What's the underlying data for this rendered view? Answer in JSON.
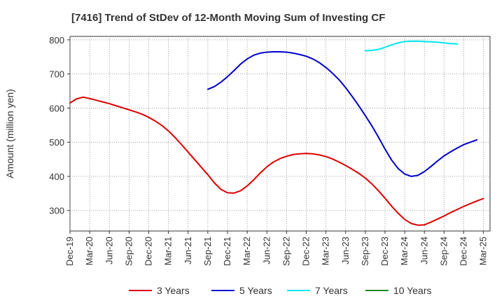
{
  "chart_data": {
    "type": "line",
    "title": "[7416]  Trend of StDev of 12-Month Moving Sum of Investing CF",
    "ylabel": "Amount (million yen)",
    "xlabel": "",
    "ylim": [
      240,
      810
    ],
    "yticks": [
      300,
      400,
      500,
      600,
      700,
      800
    ],
    "x_tick_labels": [
      "Dec-19",
      "Mar-20",
      "Jun-20",
      "Sep-20",
      "Dec-20",
      "Mar-21",
      "Jun-21",
      "Sep-21",
      "Dec-21",
      "Mar-22",
      "Jun-22",
      "Sep-22",
      "Dec-22",
      "Mar-23",
      "Jun-23",
      "Sep-23",
      "Dec-23",
      "Mar-24",
      "Jun-24",
      "Sep-24",
      "Dec-24",
      "Mar-25"
    ],
    "grid": true,
    "legend_position": "bottom",
    "series": [
      {
        "name": "3 Years",
        "color": "#dd0000",
        "start_index": 0,
        "values": [
          615,
          627,
          632,
          628,
          623,
          618,
          613,
          607,
          601,
          595,
          589,
          582,
          573,
          562,
          549,
          533,
          514,
          493,
          471,
          449,
          427,
          405,
          381,
          362,
          352,
          351,
          358,
          372,
          390,
          410,
          428,
          442,
          452,
          459,
          464,
          466,
          467,
          466,
          463,
          458,
          451,
          442,
          432,
          421,
          409,
          395,
          378,
          358,
          336,
          313,
          292,
          274,
          262,
          257,
          258,
          266,
          275,
          284,
          294,
          303,
          312,
          320,
          328,
          335
        ]
      },
      {
        "name": "5 Years",
        "color": "#0000cc",
        "start_index": 21,
        "values": [
          655,
          663,
          676,
          692,
          710,
          729,
          744,
          755,
          761,
          764,
          765,
          765,
          764,
          761,
          757,
          752,
          744,
          733,
          719,
          702,
          683,
          660,
          634,
          607,
          578,
          548,
          515,
          480,
          448,
          423,
          407,
          400,
          403,
          414,
          429,
          445,
          460,
          472,
          483,
          493,
          500,
          507
        ]
      },
      {
        "name": "7 Years",
        "color": "#00e5ee",
        "start_index": 45,
        "values": [
          768,
          769,
          772,
          778,
          785,
          791,
          795,
          796,
          796,
          795,
          794,
          793,
          791,
          789,
          788
        ]
      },
      {
        "name": "10 Years",
        "color": "#228b22",
        "start_index": 0,
        "values": []
      }
    ]
  }
}
